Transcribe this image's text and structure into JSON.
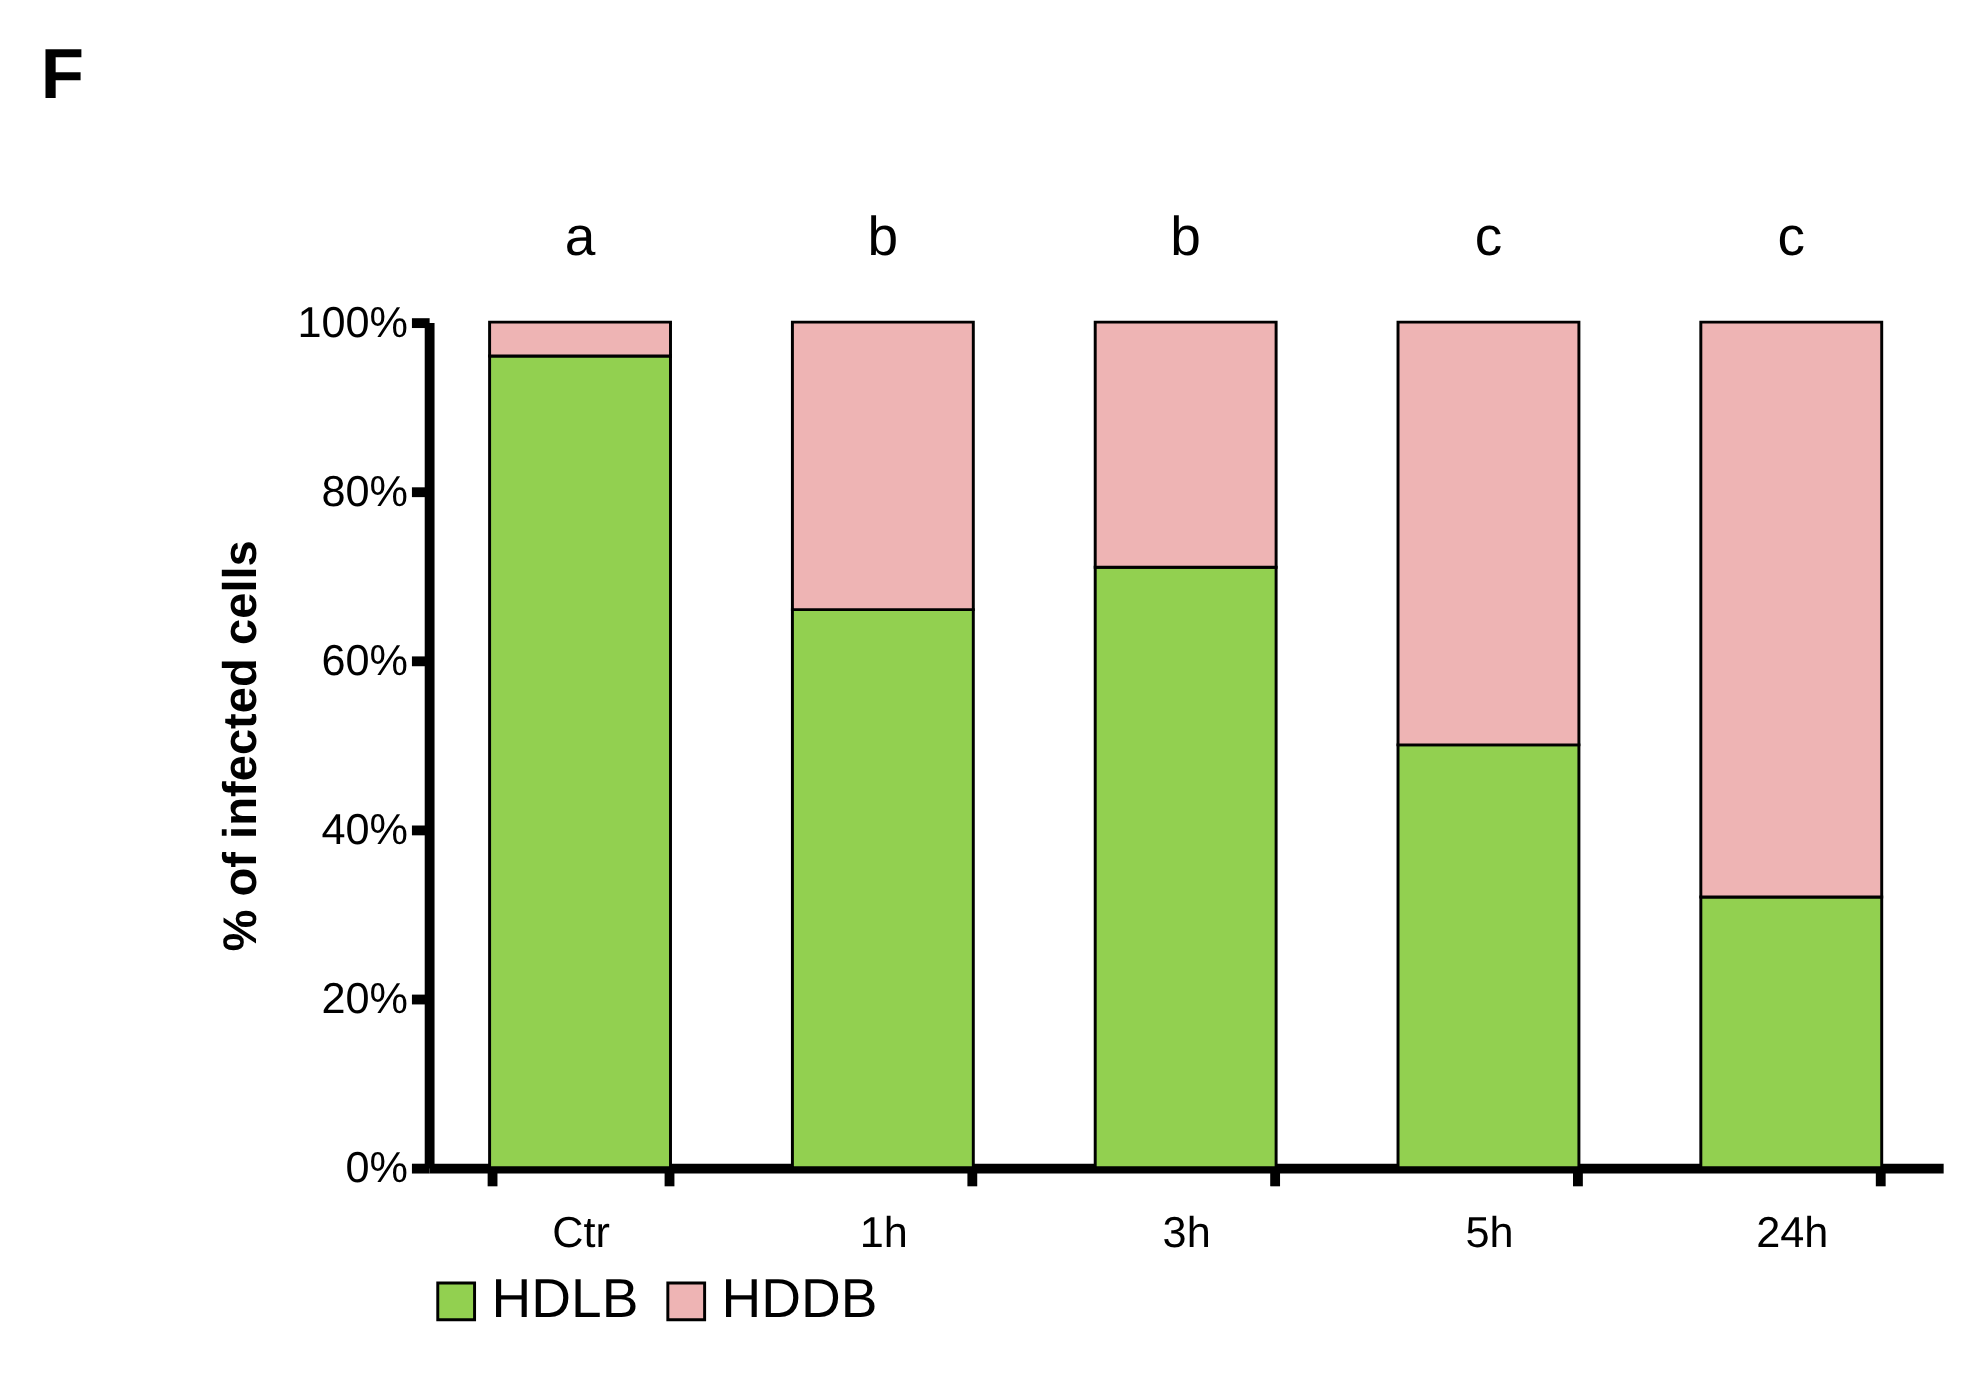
{
  "chart_data": {
    "type": "bar",
    "title": "F",
    "ylabel": "% of infected cells",
    "stacked": true,
    "categories": [
      "Ctr",
      "1h",
      "3h",
      "5h",
      "24h"
    ],
    "series": [
      {
        "name": "HDLB",
        "color": "#92d050",
        "values": [
          96,
          66,
          71,
          50,
          32
        ]
      },
      {
        "name": "HDDB",
        "color": "#eeb4b4",
        "values": [
          4,
          34,
          29,
          50,
          68
        ]
      }
    ],
    "ylim": [
      0,
      100
    ],
    "yticks": [
      {
        "value": 0,
        "label": "0%"
      },
      {
        "value": 20,
        "label": "20%"
      },
      {
        "value": 40,
        "label": "40%"
      },
      {
        "value": 60,
        "label": "60%"
      },
      {
        "value": 80,
        "label": "80%"
      },
      {
        "value": 100,
        "label": "100%"
      }
    ],
    "annotations": [
      {
        "text": "a",
        "x": "Ctr",
        "y": 100
      },
      {
        "text": "b",
        "x": "1h",
        "y": 100
      },
      {
        "text": "b",
        "x": "3h",
        "y": 100
      },
      {
        "text": "c",
        "x": "5h",
        "y": 100
      },
      {
        "text": "c",
        "x": "24h",
        "y": 100
      }
    ],
    "legend": "bottom",
    "grid": false
  }
}
